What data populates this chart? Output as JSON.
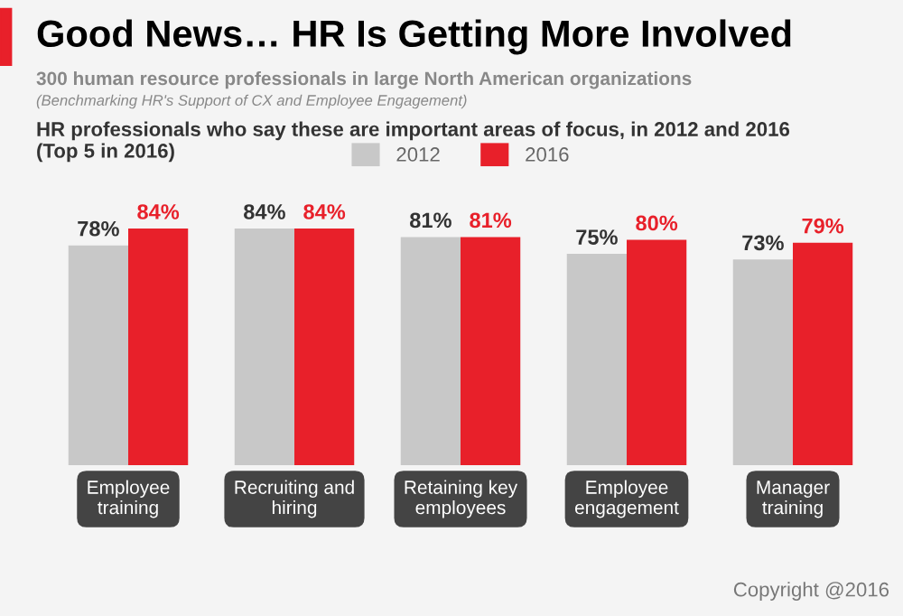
{
  "chart_data": {
    "type": "bar",
    "title": "Good News… HR Is Getting More Involved",
    "subtitle": "300 human resource professionals in large North American organizations",
    "annotations": [
      "(Benchmarking HR's Support of CX and Employee Engagement)",
      "HR professionals who say these are important areas of focus, in 2012 and 2016\n(Top 5 in 2016)",
      "Copyright @2016"
    ],
    "categories": [
      "Employee\ntraining",
      "Recruiting and\nhiring",
      "Retaining key\nemployees",
      "Employee\nengagement",
      "Manager\ntraining"
    ],
    "series": [
      {
        "name": "2012",
        "color": "#c8c8c8",
        "values": [
          78,
          84,
          81,
          75,
          73
        ],
        "value_labels": [
          "78%",
          "84%",
          "81%",
          "75%",
          "73%"
        ]
      },
      {
        "name": "2016",
        "color": "#e8202a",
        "values": [
          84,
          84,
          81,
          80,
          79
        ],
        "value_labels": [
          "84%",
          "84%",
          "81%",
          "80%",
          "79%"
        ]
      }
    ],
    "legend": "top",
    "grid": false
  }
}
